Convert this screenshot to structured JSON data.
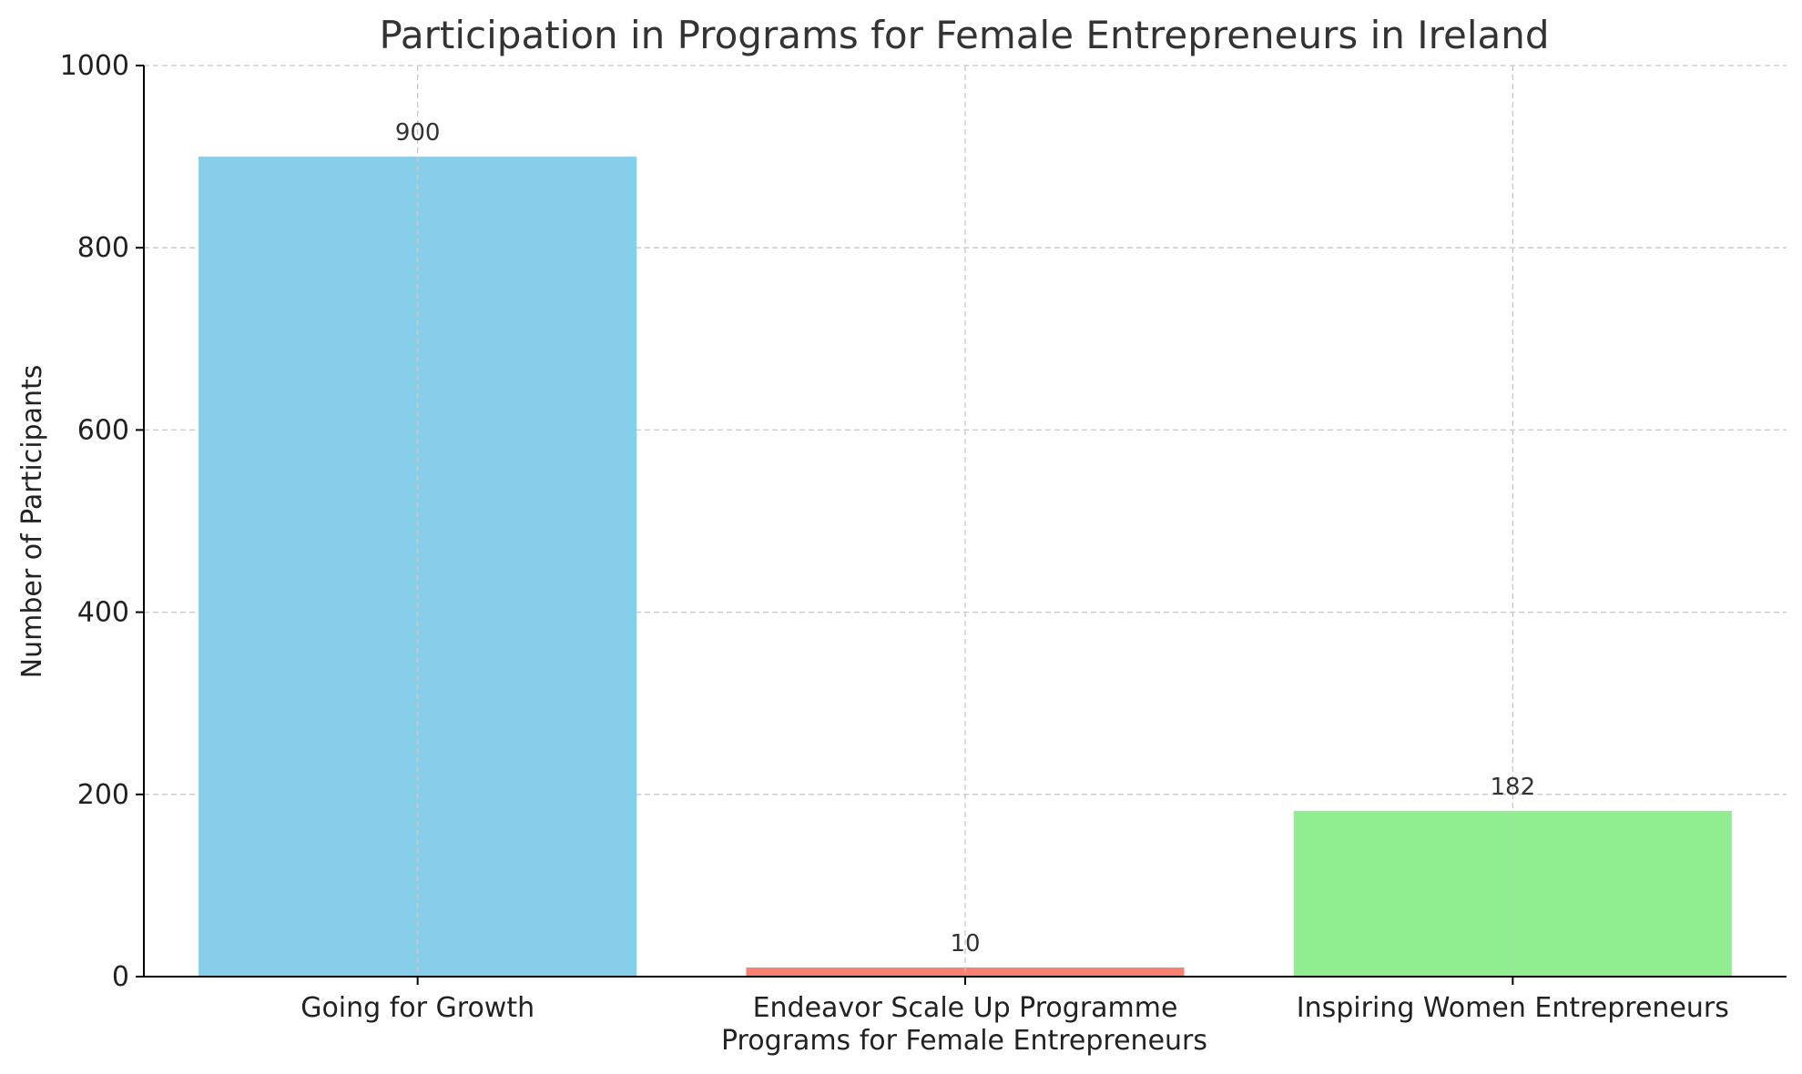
{
  "chart_data": {
    "type": "bar",
    "title": "Participation in Programs for Female Entrepreneurs in Ireland",
    "xlabel": "Programs for Female Entrepreneurs",
    "ylabel": "Number of Participants",
    "categories": [
      "Going for Growth",
      "Endeavor Scale Up Programme",
      "Inspiring Women Entrepreneurs"
    ],
    "values": [
      900,
      10,
      182
    ],
    "value_labels": [
      "900",
      "10",
      "182"
    ],
    "colors": [
      "#87ceeb",
      "#fa8072",
      "#90ee90"
    ],
    "ylim": [
      0,
      1000
    ],
    "yticks": [
      0,
      200,
      400,
      600,
      800,
      1000
    ],
    "ytick_labels": [
      "0",
      "200",
      "400",
      "600",
      "800",
      "1000"
    ],
    "grid": true
  }
}
